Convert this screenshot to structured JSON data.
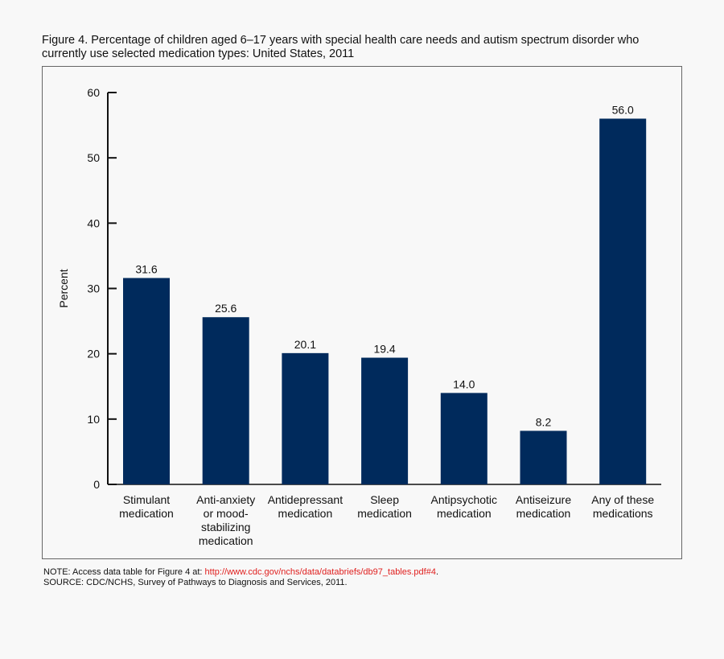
{
  "title": "Figure 4. Percentage of children aged 6–17 years with special health care needs and autism spectrum disorder who currently use selected medication types: United States, 2011",
  "note_prefix": "NOTE: Access data table for Figure 4 at: ",
  "note_link": "http://www.cdc.gov/nchs/data/databriefs/db97_tables.pdf#4",
  "note_suffix": ".",
  "source": "SOURCE: CDC/NCHS, Survey of Pathways to Diagnosis and Services, 2011.",
  "colors": {
    "bar": "#002a5c",
    "link": "#e0201f"
  },
  "chart_data": {
    "type": "bar",
    "title": "Figure 4. Percentage of children aged 6–17 years with special health care needs and autism spectrum disorder who currently use selected medication types: United States, 2011",
    "xlabel": "",
    "ylabel": "Percent",
    "ylim": [
      0,
      60
    ],
    "yticks": [
      0,
      10,
      20,
      30,
      40,
      50,
      60
    ],
    "grid": false,
    "categories": [
      [
        "Stimulant",
        "medication"
      ],
      [
        "Anti-anxiety",
        "or mood-",
        "stabilizing",
        "medication"
      ],
      [
        "Antidepressant",
        "medication"
      ],
      [
        "Sleep",
        "medication"
      ],
      [
        "Antipsychotic",
        "medication"
      ],
      [
        "Antiseizure",
        "medication"
      ],
      [
        "Any of these",
        "medications"
      ]
    ],
    "values": [
      31.6,
      25.6,
      20.1,
      19.4,
      14.0,
      8.2,
      56.0
    ],
    "data_labels": [
      "31.6",
      "25.6",
      "20.1",
      "19.4",
      "14.0",
      "8.2",
      "56.0"
    ]
  }
}
